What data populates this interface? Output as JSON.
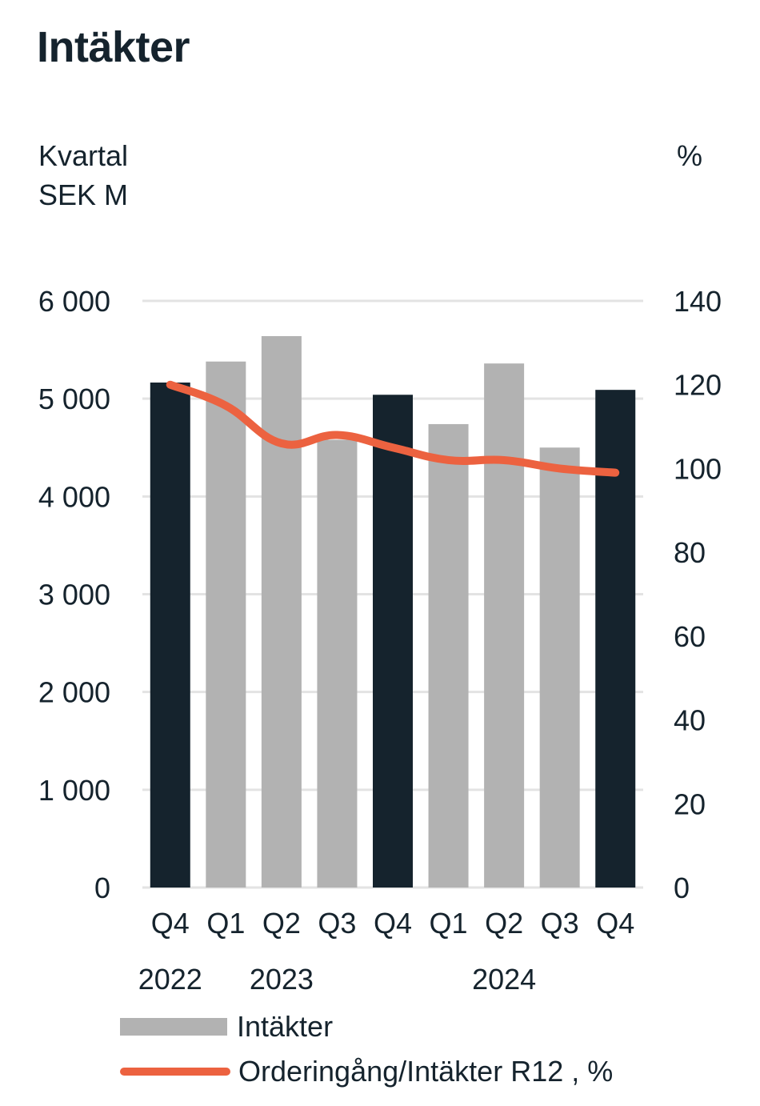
{
  "title": "Intäkter",
  "left_unit_line1": "Kvartal",
  "left_unit_line2": "SEK M",
  "right_unit": "%",
  "colors": {
    "highlight": "#15232d",
    "bar": "#b2b2b2",
    "line": "#ec6240",
    "grid": "#e3e3e3",
    "text": "#15232d"
  },
  "chart_data": {
    "type": "bar",
    "title": "Intäkter",
    "xlabel": "",
    "ylabel": "SEK M",
    "y2label": "%",
    "categories": [
      "Q4",
      "Q1",
      "Q2",
      "Q3",
      "Q4",
      "Q1",
      "Q2",
      "Q3",
      "Q4"
    ],
    "year_labels": [
      {
        "label": "2022",
        "from": 0,
        "to": 0
      },
      {
        "label": "2023",
        "from": 1,
        "to": 3
      },
      {
        "label": "2024",
        "from": 5,
        "to": 7
      }
    ],
    "highlighted": [
      true,
      false,
      false,
      false,
      true,
      false,
      false,
      false,
      true
    ],
    "series": [
      {
        "name": "Intäkter",
        "type": "bar",
        "axis": "left",
        "values": [
          5165,
          5380,
          5640,
          4580,
          5040,
          4740,
          5360,
          4500,
          5090
        ]
      },
      {
        "name": "Orderingång/Intäkter R12 , %",
        "type": "line",
        "axis": "right",
        "values": [
          120,
          115,
          106,
          108,
          105,
          102,
          102,
          100,
          99
        ]
      }
    ],
    "ylim": [
      0,
      6000
    ],
    "y2lim": [
      0,
      140
    ],
    "yticks": [
      "0",
      "1 000",
      "2 000",
      "3 000",
      "4 000",
      "5 000",
      "6 000"
    ],
    "ytick_values": [
      0,
      1000,
      2000,
      3000,
      4000,
      5000,
      6000
    ],
    "y2ticks": [
      "0",
      "20",
      "40",
      "60",
      "80",
      "100",
      "120",
      "140"
    ],
    "y2tick_values": [
      0,
      20,
      40,
      60,
      80,
      100,
      120,
      140
    ],
    "grid": true,
    "legend": "bottom-left"
  },
  "legend": [
    {
      "label": "Intäkter",
      "kind": "bar"
    },
    {
      "label": "Orderingång/Intäkter R12 , %",
      "kind": "line"
    }
  ]
}
